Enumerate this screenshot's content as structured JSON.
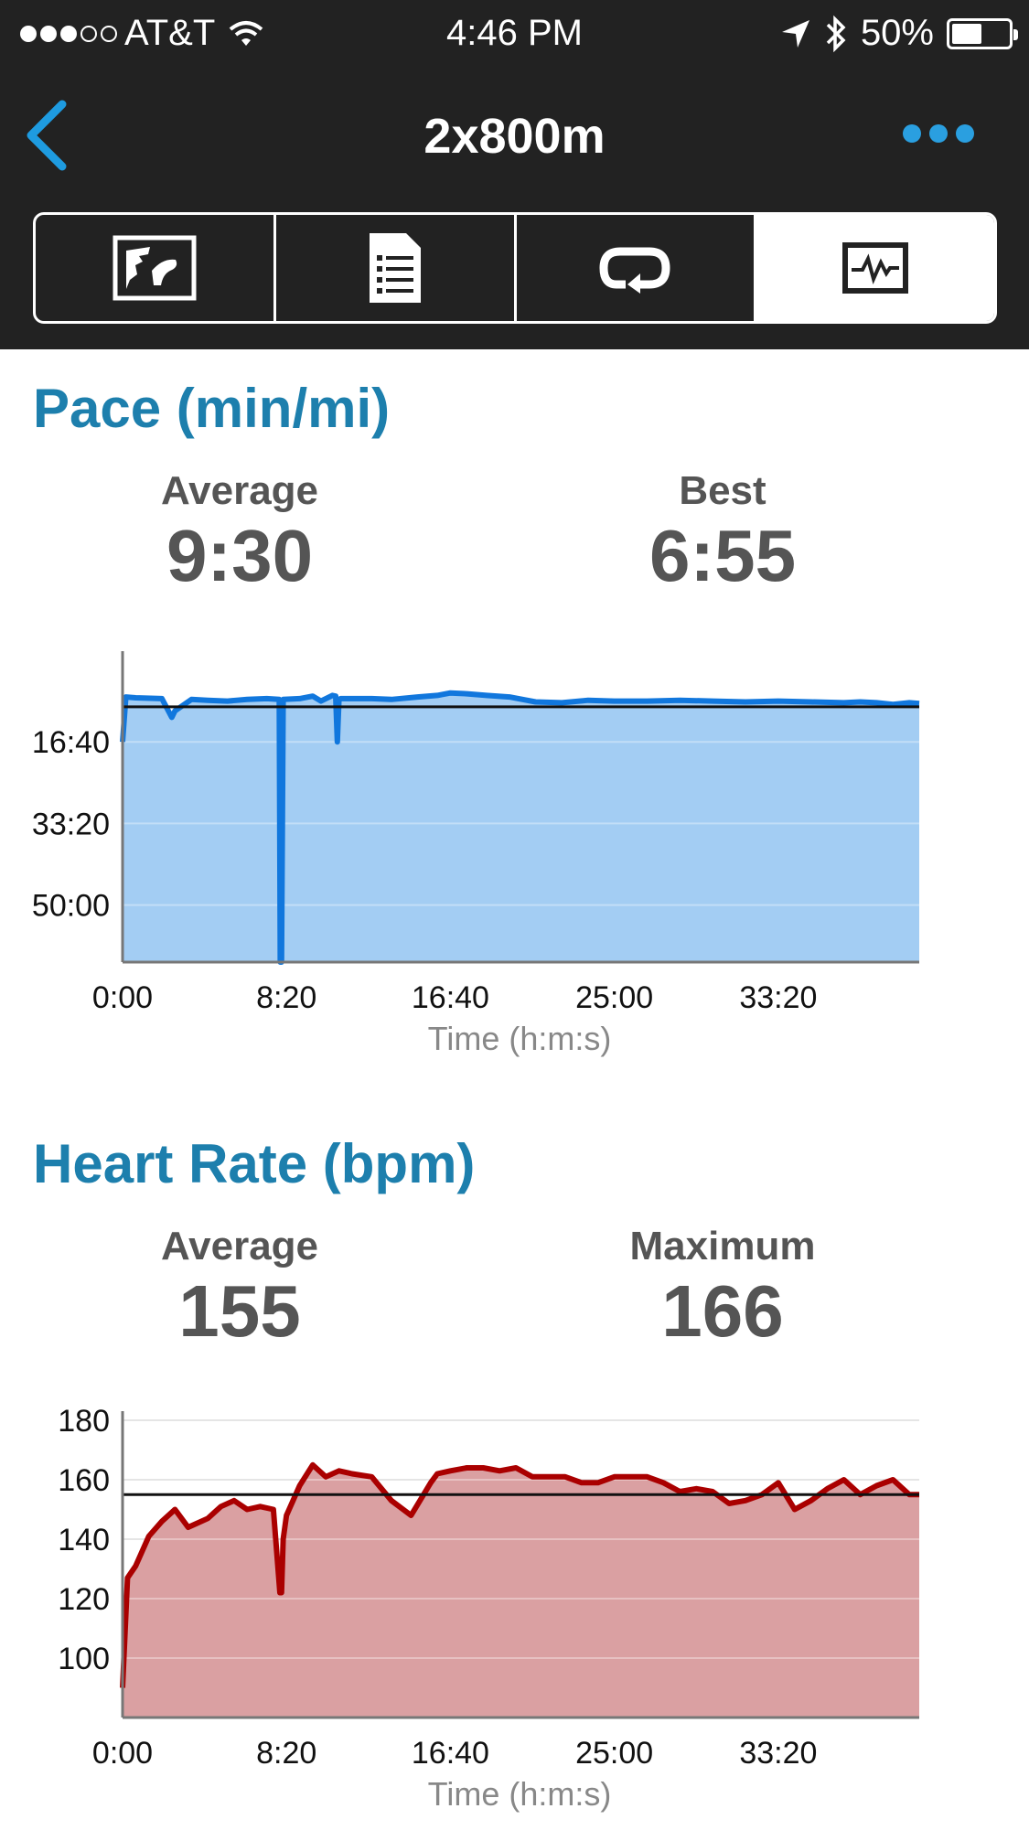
{
  "status_bar": {
    "carrier": "AT&T",
    "time": "4:46 PM",
    "battery": "50%"
  },
  "nav": {
    "title": "2x800m"
  },
  "tabs": [
    {
      "icon": "map-icon"
    },
    {
      "icon": "details-icon"
    },
    {
      "icon": "laps-icon"
    },
    {
      "icon": "charts-icon",
      "selected": true
    }
  ],
  "colors": {
    "accent": "#1d7fad",
    "pace_line": "#1177dd",
    "pace_fill": "#a3cdf3",
    "hr_line": "#aa0000",
    "hr_fill": "#daa0a2"
  },
  "pace": {
    "title": "Pace (min/mi)",
    "avg_label": "Average",
    "avg_value": "9:30",
    "best_label": "Best",
    "best_value": "6:55"
  },
  "hr": {
    "title": "Heart Rate (bpm)",
    "avg_label": "Average",
    "avg_value": "155",
    "max_label": "Maximum",
    "max_value": "166"
  },
  "chart_data": [
    {
      "type": "area",
      "x_unit": "seconds",
      "xlabel": "Time (h:m:s)",
      "ylabel": "",
      "xlim": [
        0,
        2430
      ],
      "ylim": [
        0,
        3700
      ],
      "y_inverted": true,
      "x_ticks": [
        0,
        500,
        1000,
        1500,
        2000
      ],
      "x_tick_labels": [
        "0:00",
        "8:20",
        "16:40",
        "25:00",
        "33:20"
      ],
      "y_ticks": [
        1000,
        2000,
        3000
      ],
      "y_tick_labels": [
        "16:40",
        "33:20",
        "50:00"
      ],
      "average_line": 570,
      "series": [
        {
          "x": [
            0,
            10,
            40,
            120,
            150,
            160,
            210,
            260,
            320,
            380,
            440,
            478,
            481,
            485,
            490,
            540,
            580,
            605,
            640,
            650,
            655,
            660,
            665,
            700,
            760,
            820,
            900,
            960,
            1000,
            1050,
            1110,
            1180,
            1260,
            1340,
            1420,
            1500,
            1600,
            1700,
            1800,
            1900,
            2000,
            2100,
            2200,
            2250,
            2300,
            2350,
            2400,
            2430
          ],
          "y": [
            1000,
            450,
            460,
            470,
            700,
            620,
            480,
            490,
            500,
            480,
            470,
            480,
            3700,
            3700,
            480,
            470,
            440,
            500,
            430,
            440,
            1000,
            480,
            470,
            470,
            470,
            480,
            450,
            430,
            400,
            410,
            430,
            450,
            510,
            520,
            490,
            500,
            500,
            490,
            500,
            510,
            500,
            510,
            520,
            510,
            520,
            540,
            520,
            530
          ]
        }
      ]
    },
    {
      "type": "area",
      "x_unit": "seconds",
      "xlabel": "Time (h:m:s)",
      "ylabel": "",
      "xlim": [
        0,
        2430
      ],
      "ylim": [
        80,
        180
      ],
      "x_ticks": [
        0,
        500,
        1000,
        1500,
        2000
      ],
      "x_tick_labels": [
        "0:00",
        "8:20",
        "16:40",
        "25:00",
        "33:20"
      ],
      "y_ticks": [
        100,
        120,
        140,
        160,
        180
      ],
      "y_tick_labels": [
        "100",
        "120",
        "140",
        "160",
        "180"
      ],
      "average_line": 155,
      "series": [
        {
          "x": [
            0,
            15,
            40,
            80,
            120,
            160,
            200,
            220,
            260,
            300,
            340,
            380,
            420,
            460,
            480,
            485,
            490,
            500,
            540,
            580,
            620,
            660,
            700,
            760,
            820,
            880,
            940,
            960,
            1000,
            1050,
            1100,
            1150,
            1200,
            1250,
            1300,
            1350,
            1400,
            1450,
            1500,
            1550,
            1600,
            1650,
            1700,
            1750,
            1800,
            1850,
            1900,
            1950,
            2000,
            2050,
            2100,
            2150,
            2200,
            2250,
            2300,
            2350,
            2400,
            2430
          ],
          "y": [
            90,
            127,
            131,
            141,
            146,
            150,
            144,
            145,
            147,
            151,
            153,
            150,
            151,
            150,
            122,
            122,
            140,
            148,
            158,
            165,
            161,
            163,
            162,
            161,
            153,
            148,
            159,
            162,
            163,
            164,
            164,
            163,
            164,
            161,
            161,
            161,
            159,
            159,
            161,
            161,
            161,
            159,
            156,
            157,
            156,
            152,
            153,
            155,
            159,
            150,
            153,
            157,
            160,
            155,
            158,
            160,
            155,
            155
          ]
        }
      ]
    }
  ]
}
